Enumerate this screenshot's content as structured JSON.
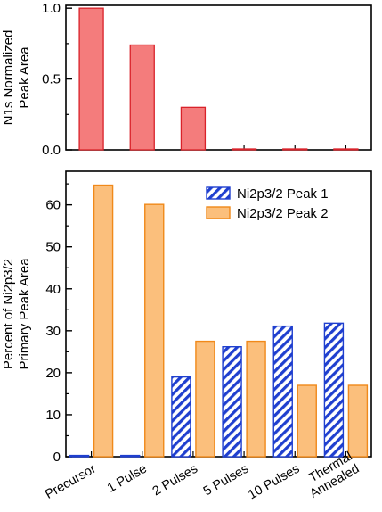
{
  "chart_data": [
    {
      "type": "bar",
      "categories": [
        "Precursor",
        "1 Pulse",
        "2 Pulses",
        "5 Pulses",
        "10 Pulses",
        "Thermal\nAnnealed"
      ],
      "series": [
        {
          "values": [
            1.0,
            0.74,
            0.3,
            0.005,
            0.005,
            0.005
          ],
          "color": "#f47c7c",
          "edge": "#d9222a"
        }
      ],
      "ylabel": [
        "N1s Normalized",
        "Peak Area"
      ],
      "ylim": [
        0,
        1.02
      ],
      "yticks": [
        0.0,
        0.5,
        1.0
      ],
      "ytick_labels": [
        "0.0",
        "0.5",
        "1.0"
      ],
      "grid": false
    },
    {
      "type": "bar",
      "categories": [
        "Precursor",
        "1 Pulse",
        "2 Pulses",
        "5 Pulses",
        "10 Pulses",
        "Thermal\nAnnealed"
      ],
      "series": [
        {
          "name": "Ni2p3/2 Peak 1",
          "values": [
            0.3,
            0.3,
            19.0,
            26.2,
            31.1,
            31.8
          ],
          "color": "#1f3fcf",
          "pattern": "hatch"
        },
        {
          "name": "Ni2p3/2 Peak 2",
          "values": [
            64.7,
            60.1,
            27.5,
            27.5,
            17.0,
            17.0
          ],
          "color": "#fbbf7c",
          "edge": "#f0891a"
        }
      ],
      "ylabel": [
        "Percent of Ni2p3/2",
        "Primary Peak Area"
      ],
      "ylim": [
        0,
        68
      ],
      "yticks": [
        0,
        10,
        20,
        30,
        40,
        50,
        60
      ],
      "ytick_labels": [
        "0",
        "10",
        "20",
        "30",
        "40",
        "50",
        "60"
      ],
      "legend": "top-right",
      "grid": false
    }
  ]
}
